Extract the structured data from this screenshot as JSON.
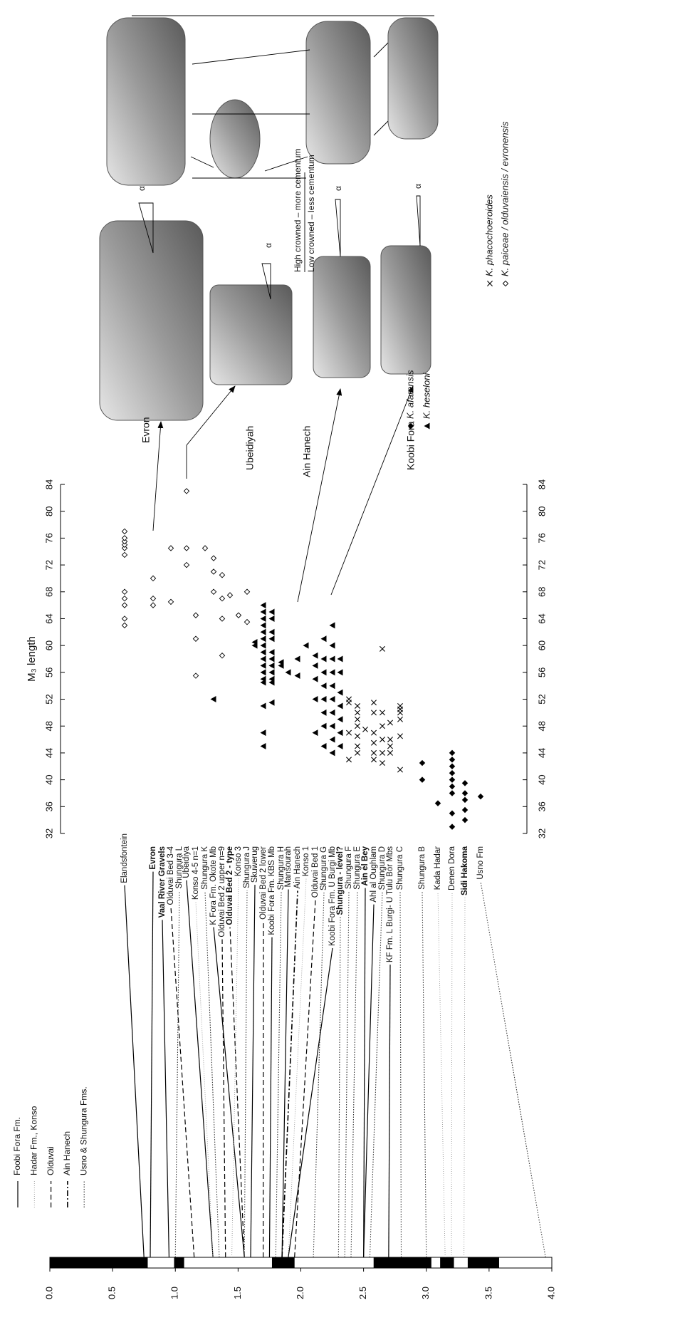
{
  "chart_data": {
    "type": "scatter",
    "title": "M₃ length",
    "xlim": [
      32,
      84
    ],
    "xticks": [
      32,
      36,
      40,
      44,
      48,
      52,
      56,
      60,
      64,
      68,
      72,
      76,
      80,
      84
    ],
    "time_axis": {
      "lim": [
        0,
        4
      ],
      "ticks": [
        {
          "value": 0,
          "label": "0.0"
        },
        0.5,
        {
          "value": 1,
          "label": "1.0"
        },
        1.5,
        {
          "value": 2,
          "label": "2.0"
        },
        2.5,
        {
          "value": 3,
          "label": "3.0"
        },
        3.5,
        {
          "value": 4,
          "label": "4.0"
        }
      ],
      "chrons": [
        [
          0,
          0.78
        ],
        [
          0.99,
          1.07
        ],
        [
          1.77,
          1.95
        ],
        [
          2.58,
          3.04
        ],
        [
          3.11,
          3.22
        ],
        [
          3.33,
          3.58
        ]
      ]
    },
    "formation_legend": [
      {
        "name": "Foobi Fora Fm.",
        "line": "solid"
      },
      {
        "name": "Hadar Fm., Konso",
        "line": "dotted-thin"
      },
      {
        "name": "Olduvai",
        "line": "dashed"
      },
      {
        "name": "Ain Hanech",
        "line": "dashdot"
      },
      {
        "name": "Usno & Shungura Fms.",
        "line": "dotted"
      }
    ],
    "categories": [
      "Elandsfontein",
      "Evron",
      "Vaal River Gravels",
      "Olduvai Bed 3-4",
      "Shungura L",
      "Ubeidiya",
      "Konso 4-5 n=1",
      "Shungura K",
      "K Fora Fm. Okote Mb",
      "Olduvai Bed 2 upper n=9",
      "Olduvai Bed 2 - type",
      "Konso 3",
      "Shungura J",
      "Skuwerug",
      "Olduvai Bed 2 lower",
      "Koobi Fora Fm. KBS Mb",
      "Shungura H",
      "Mansourah",
      "Ain Hanech",
      "Konso 1",
      "Olduvai Bed 1",
      "Shungura G",
      "Koobi Fora Fm. U Burgi Mb",
      "Shungura - level?",
      "Shungura F",
      "Shungura E",
      "Ain el Bey",
      "Ahl al Oughlam",
      "Shungura D",
      "KF Fm. L Burgi- U Tulu Bor Mbs",
      "Shungura C",
      "Shungura B",
      "Kada Hadar",
      "Denen Dora",
      "Sidi Hakoma",
      "Usno Fm"
    ],
    "ages": [
      0.75,
      0.8,
      0.95,
      1.15,
      1.0,
      1.3,
      1.3,
      1.35,
      1.55,
      1.4,
      1.55,
      1.45,
      1.55,
      1.6,
      1.7,
      1.75,
      1.8,
      1.85,
      1.85,
      1.9,
      1.95,
      2.1,
      1.9,
      2.3,
      2.35,
      2.4,
      2.5,
      2.5,
      2.55,
      2.7,
      2.8,
      3.0,
      3.15,
      3.2,
      3.3,
      3.95
    ],
    "bold": [
      false,
      true,
      true,
      false,
      false,
      false,
      false,
      false,
      false,
      false,
      true,
      false,
      false,
      false,
      false,
      false,
      false,
      false,
      false,
      false,
      false,
      false,
      false,
      true,
      false,
      false,
      true,
      false,
      false,
      false,
      false,
      false,
      false,
      false,
      true,
      false
    ],
    "lines": [
      "solid",
      "solid",
      "solid",
      "dashed",
      "dotted",
      "solid",
      "dotted-thin",
      "dotted",
      "solid",
      "dashed",
      "dashed",
      "dotted-thin",
      "dotted",
      "solid",
      "dashed",
      "solid",
      "dotted",
      "solid",
      "dashdot",
      "dotted-thin",
      "dashed",
      "dotted",
      "solid",
      "dotted",
      "dotted",
      "dotted",
      "solid",
      "solid",
      "dotted",
      "solid",
      "dotted",
      "dotted",
      "dotted-thin",
      "dotted-thin",
      "dotted-thin",
      "dotted"
    ],
    "series": [
      {
        "name": "K. afarensis",
        "marker": "diamond",
        "color": "#000",
        "values": [
          null,
          null,
          null,
          null,
          null,
          null,
          null,
          null,
          null,
          null,
          null,
          null,
          null,
          null,
          null,
          null,
          null,
          null,
          null,
          null,
          null,
          null,
          null,
          null,
          null,
          null,
          null,
          null,
          null,
          null,
          null,
          [
            40,
            42.5
          ],
          [
            36.5
          ],
          [
            33,
            35,
            38,
            39,
            40,
            41,
            42,
            43,
            44
          ],
          [
            34,
            35.5,
            37,
            38,
            39.5
          ],
          [
            37.5
          ]
        ]
      },
      {
        "name": "K. heseloni",
        "marker": "triangle",
        "color": "#000",
        "values": [
          null,
          null,
          null,
          null,
          null,
          null,
          null,
          null,
          [
            52
          ],
          null,
          null,
          null,
          null,
          [
            60,
            60.5
          ],
          [
            45,
            47,
            51,
            54.5,
            55,
            56,
            57,
            58,
            59,
            60,
            61,
            62,
            63,
            64,
            65,
            66
          ],
          [
            51.5,
            54.5,
            55,
            56,
            57,
            58,
            59,
            61,
            62,
            64,
            65
          ],
          [
            57,
            57.5
          ],
          [
            56
          ],
          [
            55.5,
            58
          ],
          [
            60
          ],
          [
            47,
            52,
            55,
            57,
            58.5
          ],
          [
            45,
            48,
            50,
            52,
            54,
            56,
            58,
            61
          ],
          [
            44,
            46,
            48,
            50,
            52,
            54,
            56,
            58,
            60,
            63
          ],
          [
            45,
            47,
            49,
            51,
            53,
            56,
            58
          ],
          null,
          null,
          null,
          null,
          null,
          null,
          null,
          null,
          null,
          null,
          null,
          null
        ]
      },
      {
        "name": "K. phacochoeroides",
        "marker": "cross",
        "color": "#000",
        "values": [
          null,
          null,
          null,
          null,
          null,
          null,
          null,
          null,
          null,
          null,
          null,
          null,
          null,
          null,
          null,
          null,
          null,
          null,
          null,
          null,
          null,
          null,
          null,
          null,
          [
            43,
            47,
            51.5,
            52
          ],
          [
            44,
            45,
            46.5,
            48,
            49,
            50,
            51
          ],
          [
            47.5
          ],
          [
            43,
            44,
            45.5,
            47,
            50,
            51.5
          ],
          [
            42.5,
            44,
            46,
            48,
            50,
            59.5
          ],
          [
            44,
            45,
            46,
            48.5
          ],
          [
            41.5,
            46.5,
            49,
            50,
            50.5,
            51
          ],
          null,
          null,
          null,
          null,
          null
        ]
      },
      {
        "name": "K. paiceae / olduvaiensis / evronensis",
        "marker": "diamond-open",
        "color": "#000",
        "values": [
          [
            63,
            64,
            66,
            67,
            68,
            73.5,
            74.5,
            75,
            75.5,
            76,
            77
          ],
          [
            66,
            67,
            70
          ],
          null,
          [
            66.5,
            74.5
          ],
          null,
          [
            72,
            74.5,
            83
          ],
          [
            55.5,
            61,
            64.5
          ],
          [
            74.5
          ],
          [
            68,
            71,
            73
          ],
          [
            58.5,
            64,
            67,
            70.5
          ],
          [
            67.5
          ],
          [
            64.5
          ],
          [
            63.5,
            68
          ],
          null,
          null,
          null,
          null,
          null,
          null,
          null,
          null,
          null,
          null,
          null,
          null,
          null,
          null,
          null,
          null,
          null,
          null,
          null,
          null,
          null,
          null,
          null
        ]
      }
    ],
    "photos": {
      "labels": [
        "Evron",
        "Ubeidiyah",
        "Ain Hanech",
        "Koobi Fora"
      ],
      "crown_high": "High crowned – more cementum",
      "crown_low": "Low crowned – less cementum",
      "alpha": [
        "α",
        "α",
        "α",
        "α"
      ]
    }
  }
}
